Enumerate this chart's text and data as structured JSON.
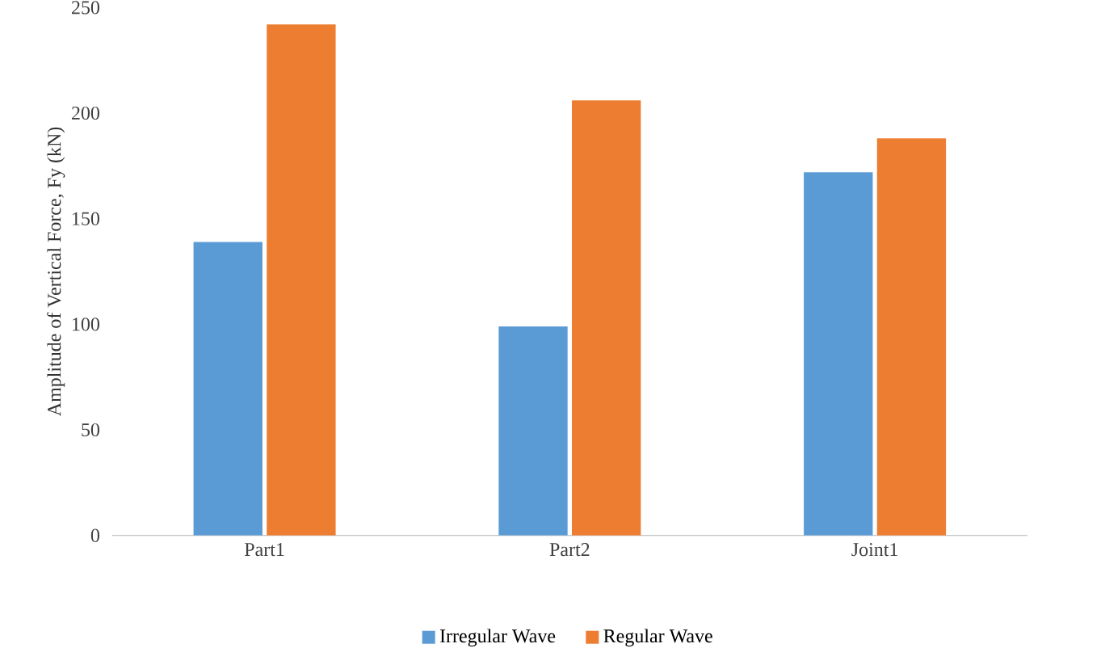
{
  "chart_data": {
    "type": "bar",
    "ylabel": "Amplitude of Vertical Force, Fy (kN)",
    "categories": [
      "Part1",
      "Part2",
      "Joint1"
    ],
    "series": [
      {
        "name": "Irregular Wave",
        "color": "#5b9bd5",
        "values": [
          139,
          99,
          172
        ]
      },
      {
        "name": "Regular Wave",
        "color": "#ed7d31",
        "values": [
          242,
          206,
          188
        ]
      }
    ],
    "ylim": [
      0,
      250
    ],
    "yticks": [
      0,
      50,
      100,
      150,
      200,
      250
    ],
    "legend": "bottom"
  }
}
